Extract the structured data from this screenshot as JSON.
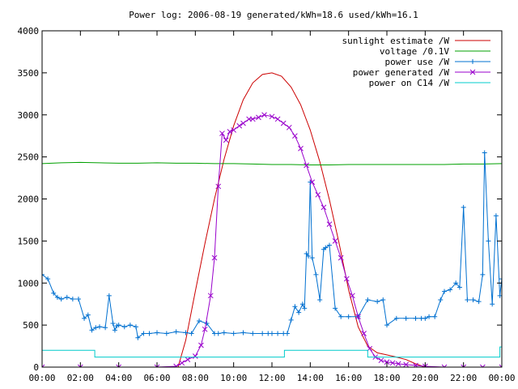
{
  "chart_data": {
    "type": "line",
    "title": "Power log: 2006-08-19 generated/kWh=18.6 used/kWh=16.1",
    "xlabel": "",
    "ylabel": "",
    "xlim": [
      0,
      24
    ],
    "ylim": [
      0,
      4000
    ],
    "xticks": [
      0,
      2,
      4,
      6,
      8,
      10,
      12,
      14,
      16,
      18,
      20,
      22,
      24
    ],
    "xtick_labels": [
      "00:00",
      "02:00",
      "04:00",
      "06:00",
      "08:00",
      "10:00",
      "12:00",
      "14:00",
      "16:00",
      "18:00",
      "20:00",
      "22:00",
      "00:00"
    ],
    "yticks": [
      0,
      500,
      1000,
      1500,
      2000,
      2500,
      3000,
      3500,
      4000
    ],
    "ytick_labels": [
      "0",
      "500",
      "1000",
      "1500",
      "2000",
      "2500",
      "3000",
      "3500",
      "4000"
    ],
    "grid": false,
    "legend_position": "top-right",
    "series": [
      {
        "name": "sunlight estimate /W",
        "color": "#cc0000",
        "marker": "none",
        "x": [
          0,
          7.1,
          7.5,
          8.0,
          8.5,
          9.0,
          9.5,
          10.0,
          10.5,
          11.0,
          11.5,
          12.0,
          12.5,
          13.0,
          13.5,
          14.0,
          14.5,
          15.0,
          15.5,
          16.0,
          16.5,
          17.0,
          17.5,
          17.9,
          18.5,
          19.0,
          19.5,
          20.0,
          24
        ],
        "y": [
          0,
          0,
          320,
          900,
          1470,
          2000,
          2470,
          2870,
          3180,
          3380,
          3480,
          3500,
          3460,
          3330,
          3120,
          2820,
          2440,
          1990,
          1480,
          920,
          480,
          250,
          170,
          150,
          120,
          90,
          40,
          0,
          0
        ]
      },
      {
        "name": "voltage /0.1V",
        "color": "#00a000",
        "marker": "none",
        "x": [
          0,
          1,
          2,
          3,
          4,
          5,
          6,
          7,
          8,
          9,
          10,
          11,
          12,
          13,
          14,
          15,
          16,
          17,
          18,
          19,
          20,
          21,
          22,
          23,
          24
        ],
        "y": [
          2420,
          2430,
          2435,
          2430,
          2425,
          2425,
          2430,
          2425,
          2425,
          2420,
          2420,
          2415,
          2410,
          2410,
          2405,
          2405,
          2410,
          2410,
          2410,
          2410,
          2410,
          2410,
          2415,
          2415,
          2420
        ]
      },
      {
        "name": "power use /W",
        "color": "#0070d0",
        "marker": "plus",
        "x": [
          0.0,
          0.3,
          0.6,
          0.8,
          1.0,
          1.3,
          1.6,
          1.9,
          2.2,
          2.4,
          2.6,
          2.8,
          3.0,
          3.3,
          3.5,
          3.7,
          3.8,
          3.9,
          4.0,
          4.3,
          4.6,
          4.9,
          5.0,
          5.3,
          5.6,
          6.0,
          6.5,
          7.0,
          7.5,
          7.8,
          8.2,
          8.6,
          9.0,
          9.2,
          9.5,
          10.0,
          10.5,
          11.0,
          11.5,
          11.8,
          12.0,
          12.3,
          12.6,
          12.8,
          13.0,
          13.2,
          13.4,
          13.6,
          13.7,
          13.8,
          13.9,
          14.0,
          14.1,
          14.3,
          14.5,
          14.7,
          14.8,
          15.0,
          15.3,
          15.6,
          16.0,
          16.5,
          17.0,
          17.5,
          17.8,
          18.0,
          18.5,
          19.0,
          19.5,
          19.8,
          20.0,
          20.2,
          20.5,
          20.8,
          21.0,
          21.3,
          21.6,
          21.8,
          22.0,
          22.2,
          22.5,
          22.8,
          23.0,
          23.1,
          23.3,
          23.5,
          23.7,
          23.9,
          24.0
        ],
        "y": [
          1100,
          1050,
          880,
          830,
          810,
          830,
          810,
          810,
          580,
          620,
          440,
          470,
          480,
          470,
          850,
          520,
          440,
          490,
          500,
          480,
          500,
          480,
          350,
          400,
          400,
          410,
          400,
          420,
          410,
          400,
          550,
          520,
          400,
          400,
          410,
          400,
          410,
          400,
          400,
          400,
          400,
          400,
          400,
          400,
          560,
          720,
          650,
          750,
          700,
          1350,
          1320,
          2200,
          1300,
          1100,
          800,
          1400,
          1420,
          1450,
          700,
          600,
          600,
          600,
          800,
          780,
          800,
          500,
          580,
          580,
          580,
          580,
          580,
          600,
          600,
          800,
          900,
          920,
          1000,
          950,
          1900,
          800,
          800,
          780,
          1100,
          2550,
          1500,
          750,
          1800,
          850,
          1050
        ]
      },
      {
        "name": "power generated /W",
        "color": "#9900cc",
        "marker": "cross",
        "x": [
          0,
          2,
          4,
          6,
          7.0,
          7.3,
          7.6,
          8.0,
          8.3,
          8.5,
          8.8,
          9.0,
          9.2,
          9.4,
          9.6,
          9.8,
          10.0,
          10.3,
          10.5,
          10.8,
          11.0,
          11.3,
          11.6,
          12.0,
          12.3,
          12.6,
          12.9,
          13.2,
          13.5,
          13.8,
          14.1,
          14.4,
          14.7,
          15.0,
          15.3,
          15.6,
          15.9,
          16.2,
          16.5,
          16.8,
          17.1,
          17.4,
          17.7,
          18.0,
          18.3,
          18.6,
          19.0,
          19.5,
          20.0,
          21,
          22,
          23,
          24
        ],
        "y": [
          0,
          0,
          0,
          0,
          10,
          50,
          90,
          130,
          260,
          450,
          850,
          1300,
          2150,
          2780,
          2700,
          2800,
          2820,
          2870,
          2900,
          2950,
          2950,
          2970,
          3000,
          2980,
          2950,
          2900,
          2850,
          2750,
          2600,
          2400,
          2200,
          2050,
          1900,
          1700,
          1500,
          1300,
          1050,
          850,
          600,
          400,
          220,
          120,
          80,
          60,
          50,
          40,
          30,
          20,
          10,
          0,
          0,
          0,
          0
        ]
      },
      {
        "name": "power on C14 /W",
        "color": "#00cccc",
        "marker": "none",
        "x": [
          0,
          2.75,
          2.75,
          12.65,
          12.65,
          13.5,
          14.5,
          17.0,
          17.0,
          23.9,
          23.9,
          24
        ],
        "y": [
          200,
          200,
          120,
          120,
          200,
          200,
          200,
          200,
          120,
          120,
          240,
          240
        ]
      }
    ]
  }
}
